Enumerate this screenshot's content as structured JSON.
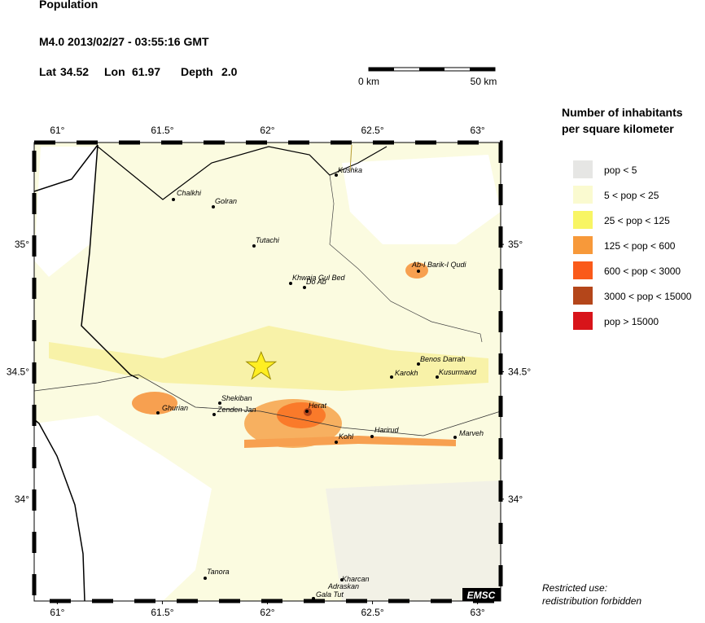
{
  "header": {
    "title": "Population",
    "event": "M4.0  2013/02/27 - 03:55:16 GMT",
    "location": {
      "lat_label": "Lat",
      "lat": 34.52,
      "lon_label": "Lon",
      "lon": 61.97,
      "depth_label": "Depth",
      "depth": "2.0"
    }
  },
  "scale": {
    "start": "0 km",
    "end": "50 km"
  },
  "legend": {
    "title": [
      "Number of inhabitants",
      "per square kilometer"
    ],
    "items": [
      {
        "label": "pop < 5",
        "color": "#e6e6e4"
      },
      {
        "label": "5 < pop < 25",
        "color": "#fafad0"
      },
      {
        "label": "25 < pop < 125",
        "color": "#f8f564"
      },
      {
        "label": "125 < pop < 600",
        "color": "#f7993a"
      },
      {
        "label": "600 < pop < 3000",
        "color": "#fa5a1a"
      },
      {
        "label": "3000 < pop < 15000",
        "color": "#b4461a"
      },
      {
        "label": "pop > 15000",
        "color": "#d8141a"
      }
    ]
  },
  "map": {
    "xlim": [
      60.89,
      63.11
    ],
    "ylim": [
      33.6,
      35.4
    ],
    "xticks": [
      {
        "value": 61,
        "label": "61°"
      },
      {
        "value": 61.5,
        "label": "61.5°"
      },
      {
        "value": 62,
        "label": "62°"
      },
      {
        "value": 62.5,
        "label": "62.5°"
      },
      {
        "value": 63,
        "label": "63°"
      }
    ],
    "yticks": [
      {
        "value": 34,
        "label": "34°"
      },
      {
        "value": 34.5,
        "label": "34.5°"
      },
      {
        "value": 35,
        "label": "35°"
      }
    ],
    "places": [
      "Kushka",
      "Chalkhi",
      "Golran",
      "Tutachi",
      "Khwaja Gul Bed",
      "Do Ab",
      "Ab-I Barik-I Qudi",
      "Benos Darrah",
      "Karokh",
      "Kusurmand",
      "Shekiban",
      "Ghurian",
      "Zenden Jan",
      "Herat",
      "Harirud",
      "Kohl",
      "Marveh",
      "Tanora",
      "Kharcan",
      "Adraskan",
      "Gala Tut"
    ],
    "credit": "EMSC"
  },
  "notice": [
    "Restricted use:",
    "redistribution forbidden"
  ]
}
